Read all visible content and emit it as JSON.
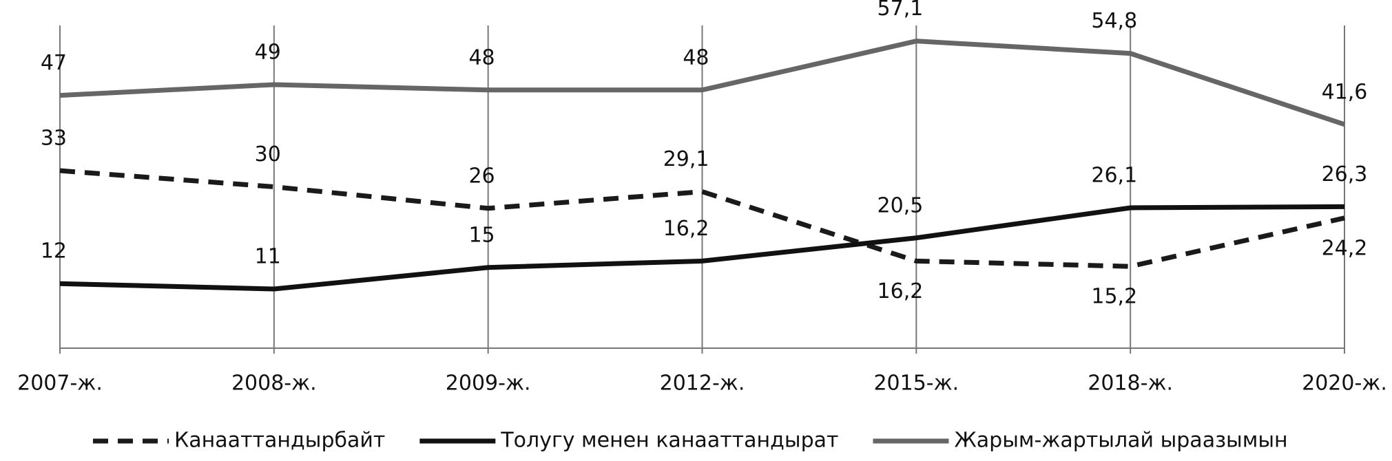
{
  "chart_data": {
    "type": "line",
    "categories": [
      "2007-ж.",
      "2008-ж.",
      "2009-ж.",
      "2012-ж.",
      "2015-ж.",
      "2018-ж.",
      "2020-ж."
    ],
    "ylim": [
      0,
      60
    ],
    "series": [
      {
        "name": "Канааттандырбайт",
        "color": "#1a1a1a",
        "style": "dashed",
        "values": [
          33,
          30,
          26,
          29.1,
          16.2,
          15.2,
          24.2
        ],
        "value_labels": [
          "33",
          "30",
          "26",
          "29,1",
          "16,2",
          "15,2",
          "24,2"
        ]
      },
      {
        "name": "Толугу менен канааттандырат",
        "color": "#111111",
        "style": "solid",
        "values": [
          12,
          11,
          15,
          16.2,
          20.5,
          26.1,
          26.3
        ],
        "value_labels": [
          "12",
          "11",
          "15",
          "16,2",
          "20,5",
          "26,1",
          "26,3"
        ]
      },
      {
        "name": "Жарым-жартылай ыраазымын",
        "color": "#666666",
        "style": "solid",
        "values": [
          47,
          49,
          48,
          48,
          57.1,
          54.8,
          41.6
        ],
        "value_labels": [
          "47",
          "49",
          "48",
          "48",
          "57,1",
          "54,8",
          "41,6"
        ]
      }
    ]
  }
}
